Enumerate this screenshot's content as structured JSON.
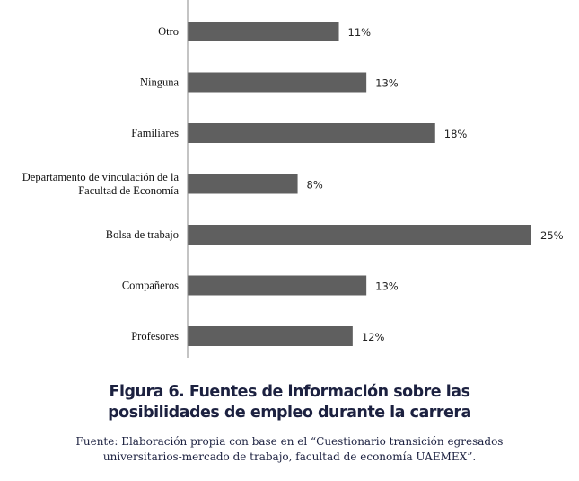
{
  "chart_data": {
    "type": "bar",
    "orientation": "horizontal",
    "categories": [
      "Otro",
      "Ninguna",
      "Familiares",
      "Departamento de vinculación  de la|Facultad de Economía",
      "Bolsa de trabajo",
      "Compañeros",
      "Profesores"
    ],
    "values": [
      11,
      13,
      18,
      8,
      25,
      13,
      12
    ],
    "value_suffix": "%",
    "bar_color": "#5f5f5f",
    "xlim": [
      0,
      25
    ],
    "grid": false
  },
  "caption": {
    "title_line1": "Figura 6. Fuentes de información sobre las",
    "title_line2": "posibilidades de empleo durante la carrera",
    "source_line1": "Fuente: Elaboración propia con base en el “Cuestionario transición egresados",
    "source_line2": "universitarios-mercado de trabajo, facultad de economía UAEMEX”."
  }
}
